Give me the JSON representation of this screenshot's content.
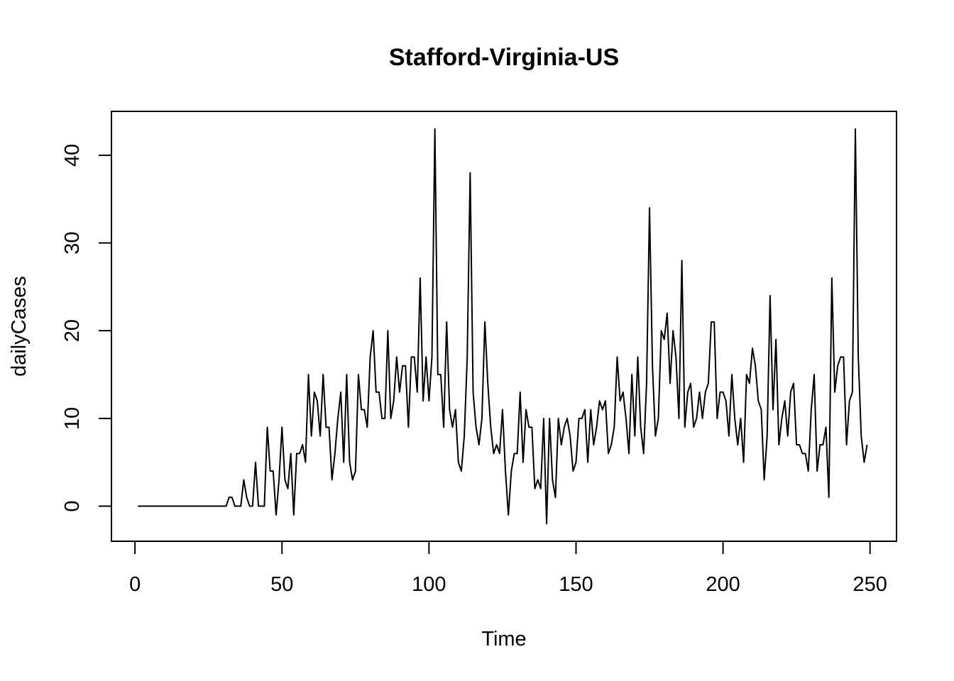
{
  "chart_data": {
    "type": "line",
    "title": "Stafford-Virginia-US",
    "xlabel": "Time",
    "ylabel": "dailyCases",
    "xlim": [
      -8,
      259
    ],
    "ylim": [
      -4,
      45
    ],
    "xticks": [
      0,
      50,
      100,
      150,
      200,
      250
    ],
    "yticks": [
      0,
      10,
      20,
      30,
      40
    ],
    "grid": false,
    "series": [
      {
        "x_start": 1,
        "values": [
          0,
          0,
          0,
          0,
          0,
          0,
          0,
          0,
          0,
          0,
          0,
          0,
          0,
          0,
          0,
          0,
          0,
          0,
          0,
          0,
          0,
          0,
          0,
          0,
          0,
          0,
          0,
          0,
          0,
          0,
          0,
          1,
          1,
          0,
          0,
          0,
          3,
          1,
          0,
          0,
          5,
          0,
          0,
          0,
          9,
          4,
          4,
          -1,
          3,
          9,
          3,
          2,
          6,
          -1,
          6,
          6,
          7,
          5,
          15,
          8,
          13,
          12,
          8,
          15,
          9,
          9,
          3,
          6,
          10,
          13,
          5,
          15,
          5,
          3,
          4,
          15,
          11,
          11,
          9,
          17,
          20,
          13,
          13,
          10,
          10,
          20,
          10,
          12,
          17,
          13,
          16,
          16,
          9,
          17,
          17,
          13,
          26,
          12,
          17,
          12,
          17,
          43,
          15,
          15,
          9,
          21,
          11,
          9,
          11,
          5,
          4,
          8,
          17,
          38,
          13,
          9,
          7,
          10,
          21,
          14,
          9,
          6,
          7,
          6,
          11,
          4,
          -1,
          4,
          6,
          6,
          13,
          5,
          11,
          9,
          9,
          2,
          3,
          2,
          10,
          -2,
          10,
          3,
          1,
          10,
          7,
          9,
          10,
          8,
          4,
          5,
          10,
          10,
          11,
          5,
          11,
          7,
          9,
          12,
          11,
          12,
          6,
          7,
          9,
          17,
          12,
          13,
          10,
          6,
          15,
          8,
          17,
          9,
          6,
          14,
          34,
          16,
          8,
          10,
          20,
          19,
          22,
          14,
          20,
          17,
          10,
          28,
          9,
          13,
          14,
          9,
          10,
          13,
          10,
          13,
          14,
          21,
          21,
          10,
          13,
          13,
          12,
          8,
          15,
          10,
          7,
          10,
          5,
          15,
          14,
          18,
          16,
          12,
          11,
          3,
          8,
          24,
          11,
          19,
          7,
          10,
          12,
          8,
          13,
          14,
          7,
          7,
          6,
          6,
          4,
          11,
          15,
          4,
          7,
          7,
          9,
          1,
          26,
          13,
          16,
          17,
          17,
          7,
          12,
          13,
          43,
          17,
          8,
          5,
          7
        ]
      }
    ]
  }
}
